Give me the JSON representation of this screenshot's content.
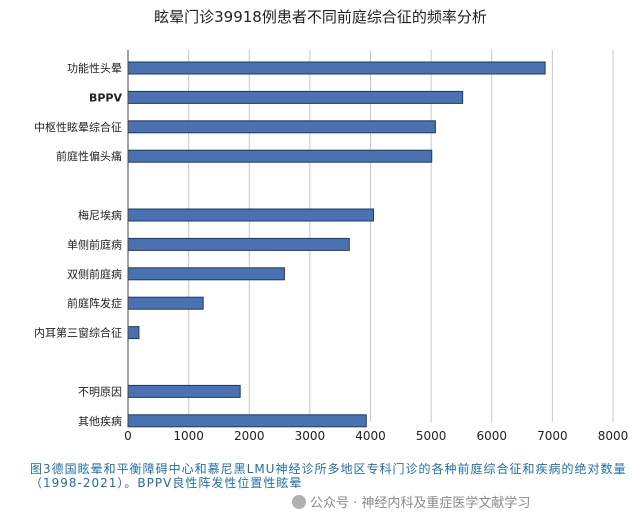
{
  "chart_data": {
    "type": "bar",
    "orientation": "horizontal",
    "title": "眩晕门诊39918例患者不同前庭综合征的频率分析",
    "categories": [
      "功能性头晕",
      "BPPV",
      "中枢性眩晕综合征",
      "前庭性偏头痛",
      "",
      "梅尼埃病",
      "单侧前庭病",
      "双侧前庭病",
      "前庭阵发症",
      "内耳第三窗综合征",
      "",
      "不明原因",
      "其他疾病"
    ],
    "values": [
      6880,
      5520,
      5070,
      5010,
      null,
      4050,
      3650,
      2580,
      1240,
      180,
      null,
      1850,
      3930
    ],
    "xlim": [
      0,
      8000
    ],
    "xticks": [
      0,
      1000,
      2000,
      3000,
      4000,
      5000,
      6000,
      7000,
      8000
    ],
    "grid": true,
    "bar_color": "#4a72b3",
    "bar_edge_color": "#1f3864"
  },
  "caption": {
    "text": "图3德国眩晕和平衡障碍中心和慕尼黑LMU神经诊所多地区专科门诊的各种前庭综合征和疾病的绝对数量（1998-2021）。BPPV良性阵发性位置性眩晕",
    "color": "#1f6fa8"
  },
  "watermark": {
    "text": "公众号 · 神经内科及重症医学文献学习"
  }
}
